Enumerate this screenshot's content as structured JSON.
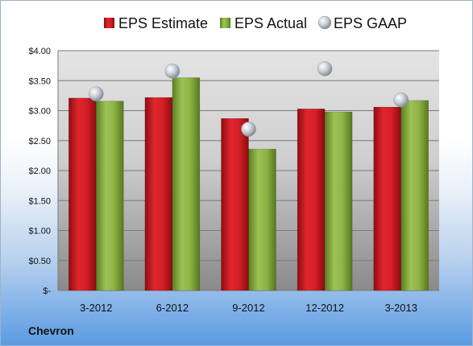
{
  "company": "Chevron",
  "chart_data": {
    "type": "bar",
    "categories": [
      "3-2012",
      "6-2012",
      "9-2012",
      "12-2012",
      "3-2013"
    ],
    "series": [
      {
        "name": "EPS Estimate",
        "kind": "bar",
        "color": "#c0161e",
        "values": [
          3.21,
          3.22,
          2.87,
          3.03,
          3.06
        ]
      },
      {
        "name": "EPS Actual",
        "kind": "bar",
        "color": "#7fa63a",
        "values": [
          3.16,
          3.55,
          2.36,
          2.98,
          3.17
        ]
      },
      {
        "name": "EPS GAAP",
        "kind": "marker",
        "color": "#aab3bd",
        "values": [
          3.28,
          3.66,
          2.69,
          3.7,
          3.18
        ]
      }
    ],
    "ylim": [
      0,
      4
    ],
    "yticks": [
      0,
      0.5,
      1,
      1.5,
      2,
      2.5,
      3,
      3.5,
      4
    ],
    "ytick_labels": [
      "$-",
      "$0.50",
      "$1.00",
      "$1.50",
      "$2.00",
      "$2.50",
      "$3.00",
      "$3.50",
      "$4.00"
    ],
    "legend_position": "top",
    "grid": true
  }
}
